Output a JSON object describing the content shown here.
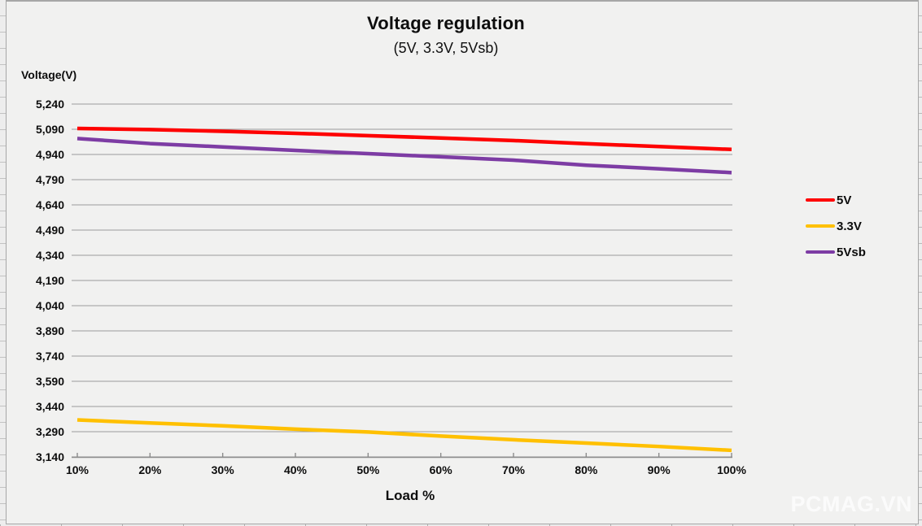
{
  "title": "Voltage regulation",
  "subtitle": "(5V, 3.3V, 5Vsb)",
  "y_axis_title": "Voltage(V)",
  "x_axis_title": "Load %",
  "watermark": "PCMAG.VN",
  "colors": {
    "page_bg": "#ebebeb",
    "chart_bg": "#f1f1f0",
    "gridline": "#9c9c9c",
    "axis": "#8c8c8c",
    "text": "#0d0d0d",
    "series_5v": "#fe0000",
    "series_3v3": "#ffc000",
    "series_5vsb": "#7d3ca4",
    "watermark": "#ffffff"
  },
  "legend": [
    {
      "label": "5V",
      "color": "#fe0000"
    },
    {
      "label": "3.3V",
      "color": "#ffc000"
    },
    {
      "label": "5Vsb",
      "color": "#7d3ca4"
    }
  ],
  "chart_data": {
    "type": "line",
    "title": "Voltage regulation",
    "subtitle": "(5V, 3.3V, 5Vsb)",
    "xlabel": "Load %",
    "ylabel": "Voltage(V)",
    "categories": [
      "10%",
      "20%",
      "30%",
      "40%",
      "50%",
      "60%",
      "70%",
      "80%",
      "90%",
      "100%"
    ],
    "series": [
      {
        "name": "5V",
        "color": "#fe0000",
        "values": [
          5095,
          5088,
          5078,
          5066,
          5052,
          5038,
          5023,
          5004,
          4987,
          4970
        ]
      },
      {
        "name": "3.3V",
        "color": "#ffc000",
        "values": [
          3360,
          3342,
          3325,
          3305,
          3288,
          3264,
          3242,
          3222,
          3202,
          3179
        ]
      },
      {
        "name": "5Vsb",
        "color": "#7d3ca4",
        "values": [
          5035,
          5005,
          4985,
          4964,
          4945,
          4926,
          4906,
          4876,
          4855,
          4832
        ]
      }
    ],
    "ylim": [
      3140,
      5240
    ],
    "ytick_step": 150,
    "ytick_labels": [
      "5,240",
      "5,090",
      "4,940",
      "4,790",
      "4,640",
      "4,490",
      "4,340",
      "4,190",
      "4,040",
      "3,890",
      "3,740",
      "3,590",
      "3,440",
      "3,290",
      "3,140"
    ],
    "grid": true,
    "legend_position": "right"
  }
}
